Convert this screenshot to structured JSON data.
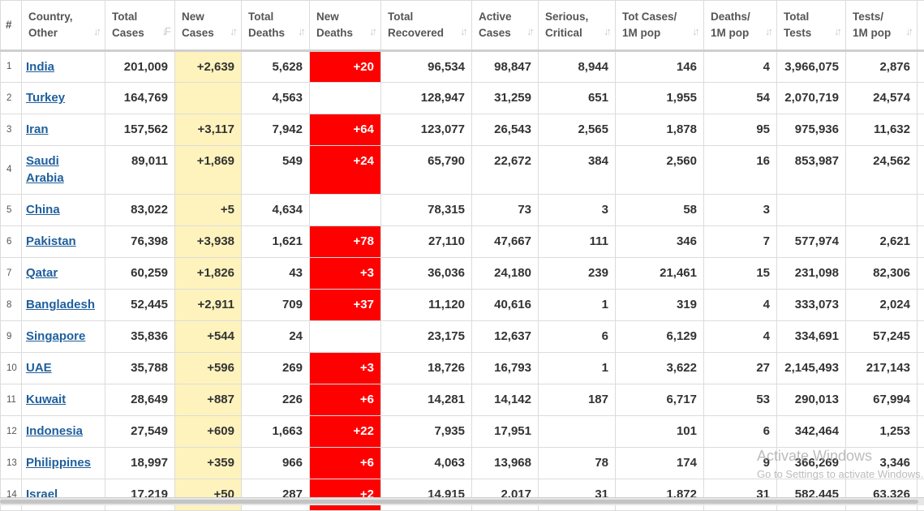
{
  "headers": [
    {
      "line1": "",
      "line2": "#",
      "sort": ""
    },
    {
      "line1": "Country,",
      "line2": "Other",
      "sort": "↓↑"
    },
    {
      "line1": "Total",
      "line2": "Cases",
      "sort": "↓F"
    },
    {
      "line1": "New",
      "line2": "Cases",
      "sort": "↓↑"
    },
    {
      "line1": "Total",
      "line2": "Deaths",
      "sort": "↓↑"
    },
    {
      "line1": "New",
      "line2": "Deaths",
      "sort": "↓↑"
    },
    {
      "line1": "Total",
      "line2": "Recovered",
      "sort": "↓↑"
    },
    {
      "line1": "Active",
      "line2": "Cases",
      "sort": "↓↑"
    },
    {
      "line1": "Serious,",
      "line2": "Critical",
      "sort": "↓↑"
    },
    {
      "line1": "Tot Cases/",
      "line2": "1M pop",
      "sort": "↓↑"
    },
    {
      "line1": "Deaths/",
      "line2": "1M pop",
      "sort": "↓↑"
    },
    {
      "line1": "Total",
      "line2": "Tests",
      "sort": "↓↑"
    },
    {
      "line1": "Tests/",
      "line2": "1M pop",
      "sort": "↓↑"
    }
  ],
  "rows": [
    {
      "idx": "1",
      "country": "India",
      "total_cases": "201,009",
      "new_cases": "+2,639",
      "total_deaths": "5,628",
      "new_deaths": "+20",
      "total_recovered": "96,534",
      "active_cases": "98,847",
      "serious": "8,944",
      "cases_per_1m": "146",
      "deaths_per_1m": "4",
      "total_tests": "3,966,075",
      "tests_per_1m": "2,876"
    },
    {
      "idx": "2",
      "country": "Turkey",
      "total_cases": "164,769",
      "new_cases": "",
      "total_deaths": "4,563",
      "new_deaths": "",
      "total_recovered": "128,947",
      "active_cases": "31,259",
      "serious": "651",
      "cases_per_1m": "1,955",
      "deaths_per_1m": "54",
      "total_tests": "2,070,719",
      "tests_per_1m": "24,574"
    },
    {
      "idx": "3",
      "country": "Iran",
      "total_cases": "157,562",
      "new_cases": "+3,117",
      "total_deaths": "7,942",
      "new_deaths": "+64",
      "total_recovered": "123,077",
      "active_cases": "26,543",
      "serious": "2,565",
      "cases_per_1m": "1,878",
      "deaths_per_1m": "95",
      "total_tests": "975,936",
      "tests_per_1m": "11,632"
    },
    {
      "idx": "4",
      "country": "Saudi Arabia",
      "total_cases": "89,011",
      "new_cases": "+1,869",
      "total_deaths": "549",
      "new_deaths": "+24",
      "total_recovered": "65,790",
      "active_cases": "22,672",
      "serious": "384",
      "cases_per_1m": "2,560",
      "deaths_per_1m": "16",
      "total_tests": "853,987",
      "tests_per_1m": "24,562"
    },
    {
      "idx": "5",
      "country": "China",
      "total_cases": "83,022",
      "new_cases": "+5",
      "total_deaths": "4,634",
      "new_deaths": "",
      "total_recovered": "78,315",
      "active_cases": "73",
      "serious": "3",
      "cases_per_1m": "58",
      "deaths_per_1m": "3",
      "total_tests": "",
      "tests_per_1m": ""
    },
    {
      "idx": "6",
      "country": "Pakistan",
      "total_cases": "76,398",
      "new_cases": "+3,938",
      "total_deaths": "1,621",
      "new_deaths": "+78",
      "total_recovered": "27,110",
      "active_cases": "47,667",
      "serious": "111",
      "cases_per_1m": "346",
      "deaths_per_1m": "7",
      "total_tests": "577,974",
      "tests_per_1m": "2,621"
    },
    {
      "idx": "7",
      "country": "Qatar",
      "total_cases": "60,259",
      "new_cases": "+1,826",
      "total_deaths": "43",
      "new_deaths": "+3",
      "total_recovered": "36,036",
      "active_cases": "24,180",
      "serious": "239",
      "cases_per_1m": "21,461",
      "deaths_per_1m": "15",
      "total_tests": "231,098",
      "tests_per_1m": "82,306"
    },
    {
      "idx": "8",
      "country": "Bangladesh",
      "total_cases": "52,445",
      "new_cases": "+2,911",
      "total_deaths": "709",
      "new_deaths": "+37",
      "total_recovered": "11,120",
      "active_cases": "40,616",
      "serious": "1",
      "cases_per_1m": "319",
      "deaths_per_1m": "4",
      "total_tests": "333,073",
      "tests_per_1m": "2,024"
    },
    {
      "idx": "9",
      "country": "Singapore",
      "total_cases": "35,836",
      "new_cases": "+544",
      "total_deaths": "24",
      "new_deaths": "",
      "total_recovered": "23,175",
      "active_cases": "12,637",
      "serious": "6",
      "cases_per_1m": "6,129",
      "deaths_per_1m": "4",
      "total_tests": "334,691",
      "tests_per_1m": "57,245"
    },
    {
      "idx": "10",
      "country": "UAE",
      "total_cases": "35,788",
      "new_cases": "+596",
      "total_deaths": "269",
      "new_deaths": "+3",
      "total_recovered": "18,726",
      "active_cases": "16,793",
      "serious": "1",
      "cases_per_1m": "3,622",
      "deaths_per_1m": "27",
      "total_tests": "2,145,493",
      "tests_per_1m": "217,143"
    },
    {
      "idx": "11",
      "country": "Kuwait",
      "total_cases": "28,649",
      "new_cases": "+887",
      "total_deaths": "226",
      "new_deaths": "+6",
      "total_recovered": "14,281",
      "active_cases": "14,142",
      "serious": "187",
      "cases_per_1m": "6,717",
      "deaths_per_1m": "53",
      "total_tests": "290,013",
      "tests_per_1m": "67,994"
    },
    {
      "idx": "12",
      "country": "Indonesia",
      "total_cases": "27,549",
      "new_cases": "+609",
      "total_deaths": "1,663",
      "new_deaths": "+22",
      "total_recovered": "7,935",
      "active_cases": "17,951",
      "serious": "",
      "cases_per_1m": "101",
      "deaths_per_1m": "6",
      "total_tests": "342,464",
      "tests_per_1m": "1,253"
    },
    {
      "idx": "13",
      "country": "Philippines",
      "total_cases": "18,997",
      "new_cases": "+359",
      "total_deaths": "966",
      "new_deaths": "+6",
      "total_recovered": "4,063",
      "active_cases": "13,968",
      "serious": "78",
      "cases_per_1m": "174",
      "deaths_per_1m": "9",
      "total_tests": "366,269",
      "tests_per_1m": "3,346"
    },
    {
      "idx": "14",
      "country": "Israel",
      "total_cases": "17,219",
      "new_cases": "+50",
      "total_deaths": "287",
      "new_deaths": "+2",
      "total_recovered": "14,915",
      "active_cases": "2,017",
      "serious": "31",
      "cases_per_1m": "1,872",
      "deaths_per_1m": "31",
      "total_tests": "582,445",
      "tests_per_1m": "63,326"
    }
  ],
  "watermark": {
    "line1": "Activate Windows",
    "line2": "Go to Settings to activate Windows."
  },
  "colors": {
    "new_cases_bg": "#fff3bd",
    "new_deaths_bg": "#ff0000",
    "link": "#1f5f9c"
  }
}
